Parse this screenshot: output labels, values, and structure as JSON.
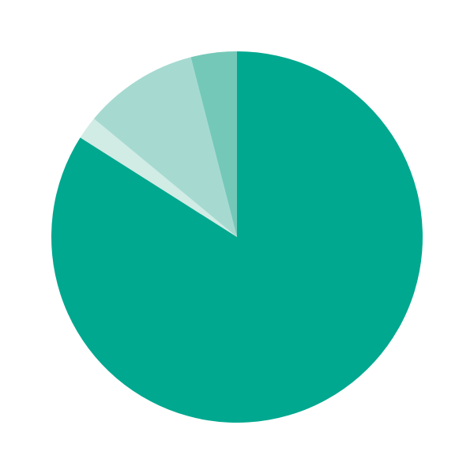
{
  "chart_data": {
    "type": "pie",
    "title": "",
    "start_angle": "top",
    "direction": "clockwise",
    "legend": "none",
    "slices": [
      {
        "value": 84,
        "color": "#00a88f"
      },
      {
        "value": 2,
        "color": "#d1ebe5"
      },
      {
        "value": 10,
        "color": "#a6dad1"
      },
      {
        "value": 4,
        "color": "#74c8b8"
      }
    ]
  }
}
